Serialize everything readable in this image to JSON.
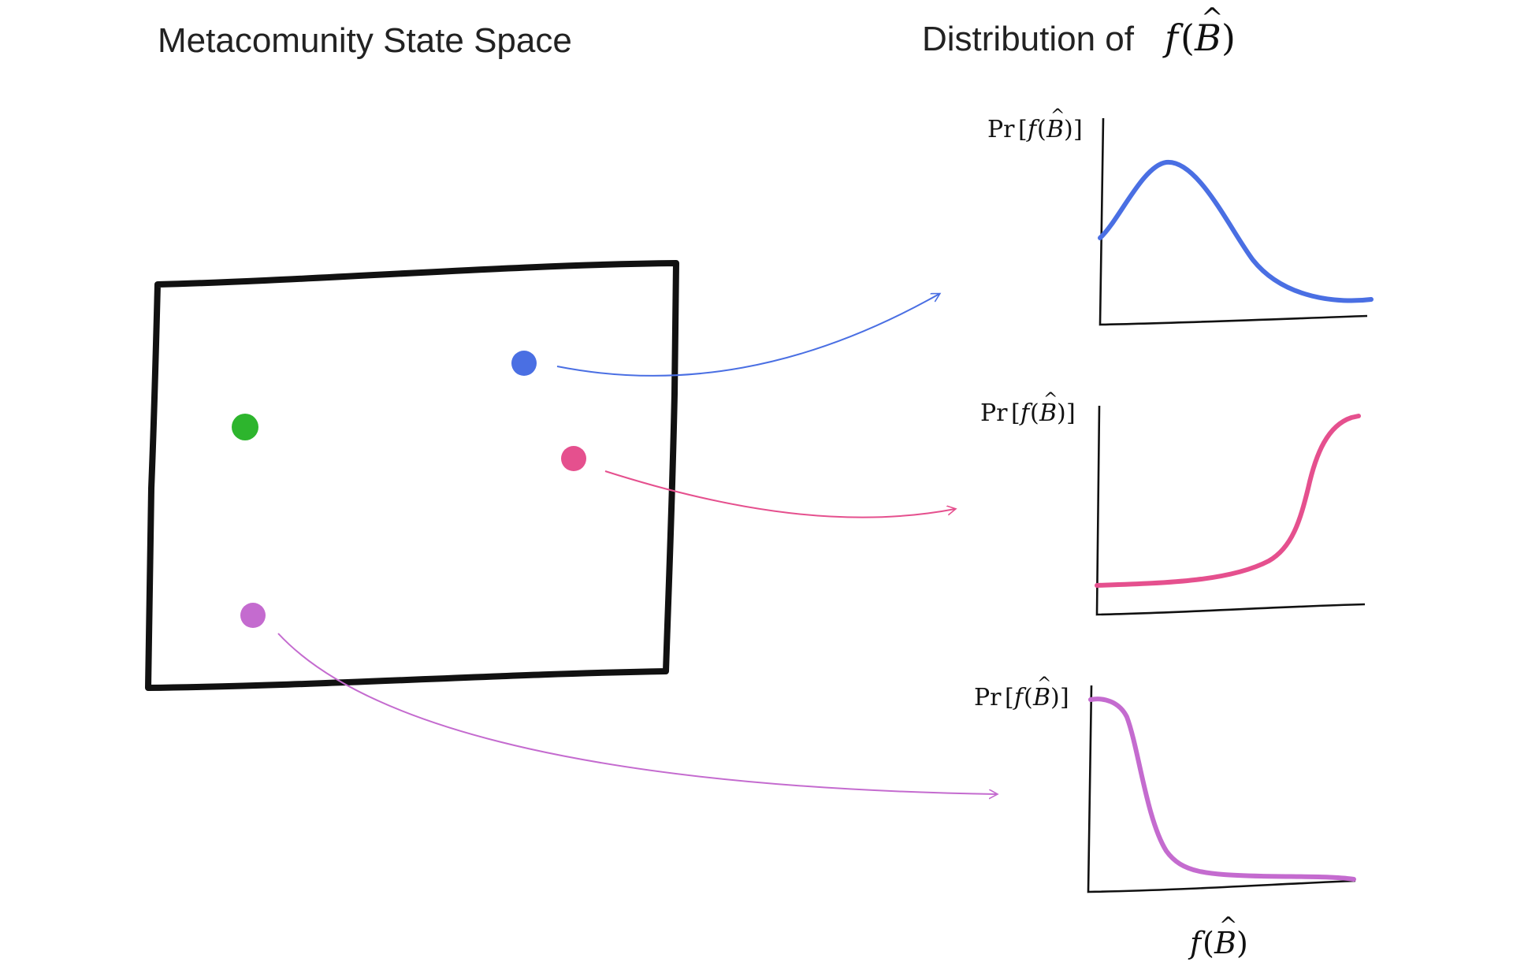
{
  "titles": {
    "left": "Metacomunity State Space",
    "right_prefix": "Distribution of "
  },
  "math": {
    "f": "f",
    "B": "B",
    "hat": "^",
    "open_paren": "(",
    "close_paren": ")",
    "pr": "Pr",
    "open_bracket": "[",
    "close_bracket": "]"
  },
  "points": [
    {
      "name": "blue-point",
      "color": "#4a6fe3"
    },
    {
      "name": "green-point",
      "color": "#2db52d"
    },
    {
      "name": "pink-point",
      "color": "#e5508e"
    },
    {
      "name": "purple-point",
      "color": "#c46bcf"
    }
  ],
  "plots": [
    {
      "name": "blue-distribution",
      "color": "#4a6fe3",
      "shape": "hump"
    },
    {
      "name": "pink-distribution",
      "color": "#e5508e",
      "shape": "rising"
    },
    {
      "name": "purple-distribution",
      "color": "#c46bcf",
      "shape": "decaying"
    }
  ]
}
